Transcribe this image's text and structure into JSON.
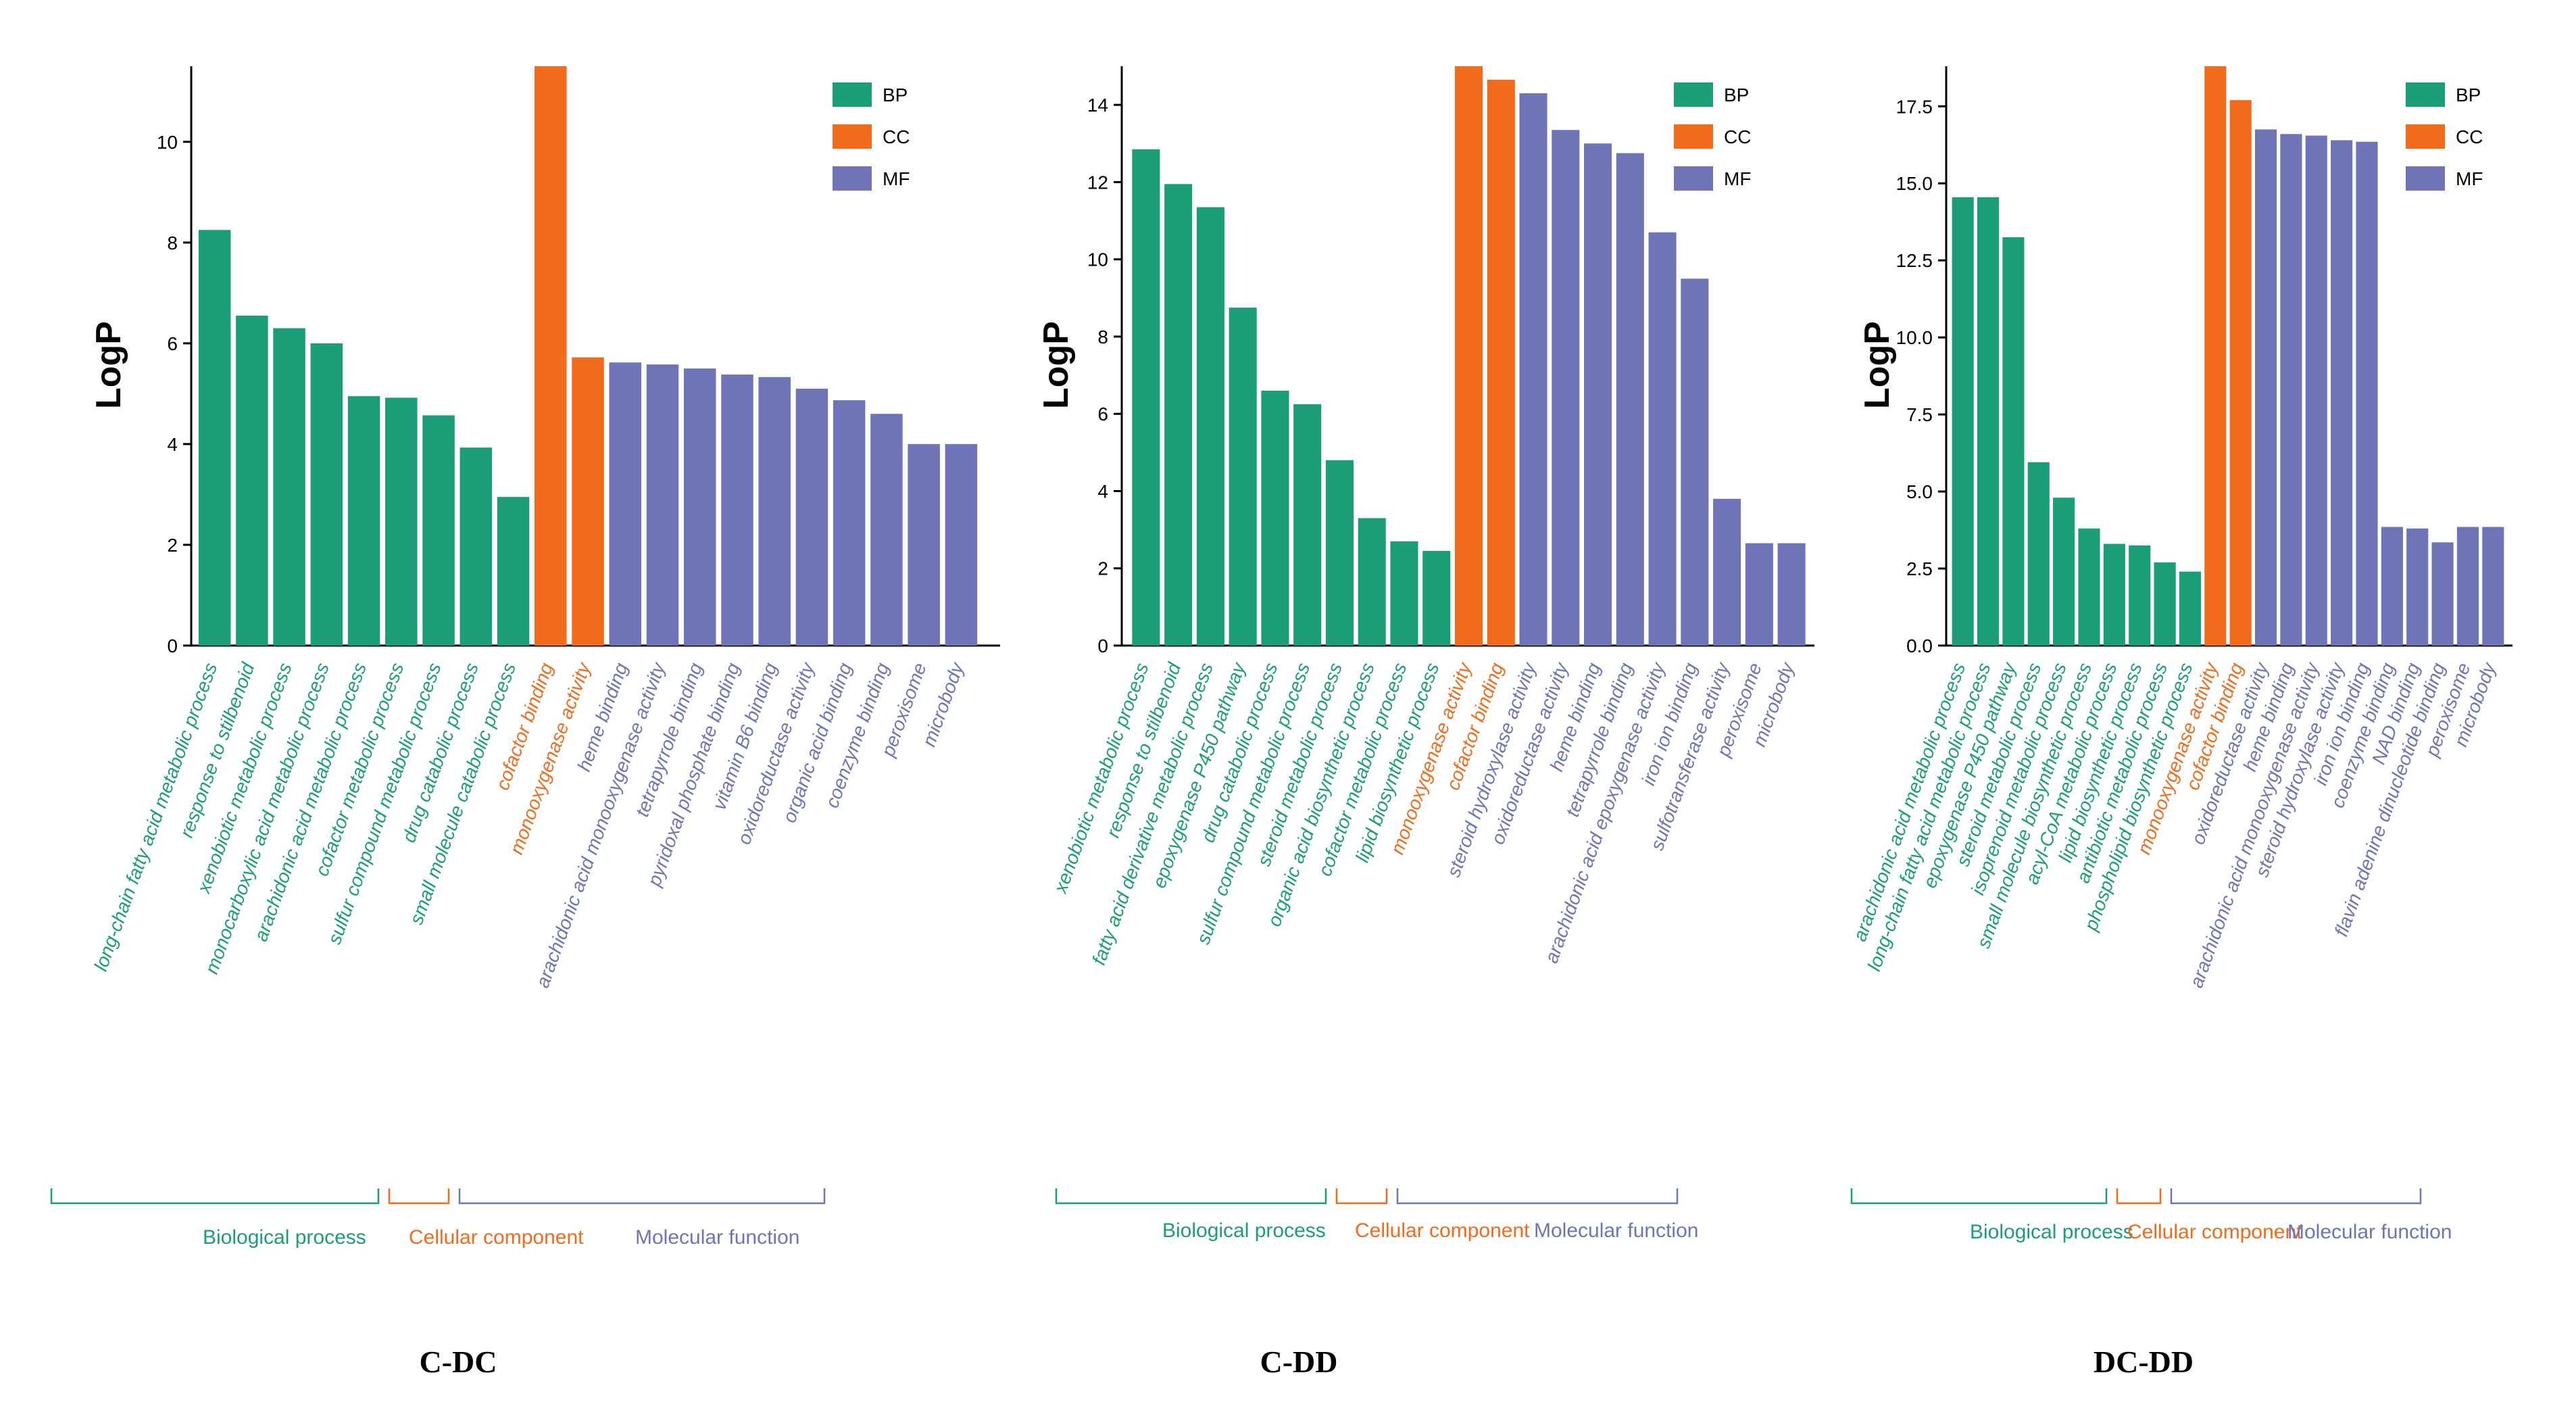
{
  "colors": {
    "BP": "#1b9e77",
    "CC": "#f26b1d",
    "MF": "#6f74b8"
  },
  "legend": [
    {
      "key": "BP",
      "label": "BP"
    },
    {
      "key": "CC",
      "label": "CC"
    },
    {
      "key": "MF",
      "label": "MF"
    }
  ],
  "ylabel": "LogP",
  "group_labels": {
    "BP": "Biological process",
    "CC": "Cellular component",
    "MF": "Molecular function"
  },
  "chart_data": [
    {
      "type": "bar",
      "title": "C-DC",
      "ylabel": "LogP",
      "ylim": [
        0,
        11.5
      ],
      "yticks": [
        0,
        2,
        4,
        6,
        8,
        10
      ],
      "tick_labels": [
        "0",
        "2",
        "4",
        "6",
        "8",
        "10"
      ],
      "categories": [
        "long-chain fatty acid metabolic process",
        "response to stilbenoid",
        "xenobiotic metabolic process",
        "monocarboxylic acid metabolic process",
        "arachidonic acid metabolic process",
        "cofactor metabolic process",
        "sulfur compound metabolic process",
        "drug catabolic process",
        "small molecule catabolic process",
        "cofactor binding",
        "monooxygenase activity",
        "heme binding",
        "arachidonic acid monooxygenase activity",
        "tetrapyrrole binding",
        "pyridoxal phosphate binding",
        "vitamin B6 binding",
        "oxidoreductase activity",
        "organic acid binding",
        "coenzyme binding",
        "peroxisome",
        "microbody"
      ],
      "groups": [
        "BP",
        "BP",
        "BP",
        "BP",
        "BP",
        "BP",
        "BP",
        "BP",
        "BP",
        "CC",
        "CC",
        "MF",
        "MF",
        "MF",
        "MF",
        "MF",
        "MF",
        "MF",
        "MF",
        "MF",
        "MF"
      ],
      "values": [
        8.25,
        6.55,
        6.3,
        6.0,
        4.95,
        4.92,
        4.57,
        3.93,
        2.95,
        11.5,
        5.72,
        5.62,
        5.58,
        5.5,
        5.38,
        5.33,
        5.1,
        4.87,
        4.6,
        4.0,
        4.0
      ]
    },
    {
      "type": "bar",
      "title": "C-DD",
      "ylabel": "LogP",
      "ylim": [
        0,
        15.0
      ],
      "yticks": [
        0,
        2,
        4,
        6,
        8,
        10,
        12,
        14
      ],
      "tick_labels": [
        "0",
        "2",
        "4",
        "6",
        "8",
        "10",
        "12",
        "14"
      ],
      "categories": [
        "xenobiotic metabolic process",
        "response to stilbenoid",
        "fatty acid derivative metabolic process",
        "epoxygenase P450 pathway",
        "drug catabolic process",
        "sulfur compound metabolic process",
        "steroid metabolic process",
        "organic acid biosynthetic process",
        "cofactor metabolic process",
        "lipid biosynthetic process",
        "monooxygenase activity",
        "cofactor binding",
        "steroid hydroxylase activity",
        "oxidoreductase activity",
        "heme binding",
        "tetrapyrrole binding",
        "arachidonic acid epoxygenase activity",
        "iron ion binding",
        "sulfotransferase activity",
        "peroxisome",
        "microbody"
      ],
      "groups": [
        "BP",
        "BP",
        "BP",
        "BP",
        "BP",
        "BP",
        "BP",
        "BP",
        "BP",
        "BP",
        "CC",
        "CC",
        "MF",
        "MF",
        "MF",
        "MF",
        "MF",
        "MF",
        "MF",
        "MF",
        "MF"
      ],
      "values": [
        12.85,
        11.95,
        11.35,
        8.75,
        6.6,
        6.25,
        4.8,
        3.3,
        2.7,
        2.45,
        15.0,
        14.65,
        14.3,
        13.35,
        13.0,
        12.75,
        10.7,
        9.5,
        3.8,
        2.65,
        2.65
      ]
    },
    {
      "type": "bar",
      "title": "DC-DD",
      "ylabel": "LogP",
      "ylim": [
        0,
        18.8
      ],
      "yticks": [
        0,
        2.5,
        5,
        7.5,
        10,
        12.5,
        15,
        17.5
      ],
      "tick_labels": [
        "0.0",
        "2.5",
        "5.0",
        "7.5",
        "10.0",
        "12.5",
        "15.0",
        "17.5"
      ],
      "categories": [
        "arachidonic acid metabolic process",
        "long-chain fatty acid metabolic process",
        "epoxygenase P450 pathway",
        "steroid metabolic process",
        "isoprenoid metabolic process",
        "small molecule biosynthetic process",
        "acyl-CoA metabolic process",
        "lipid biosynthetic process",
        "antibiotic metabolic process",
        "phospholipid biosynthetic process",
        "monooxygenase activity",
        "cofactor binding",
        "oxidoreductase activity",
        "heme binding",
        "arachidonic acid monooxygenase activity",
        "steroid hydroxylase activity",
        "iron ion binding",
        "coenzyme binding",
        "NAD binding",
        "flavin adenine dinucleotide binding",
        "peroxisome",
        "microbody"
      ],
      "groups": [
        "BP",
        "BP",
        "BP",
        "BP",
        "BP",
        "BP",
        "BP",
        "BP",
        "BP",
        "BP",
        "CC",
        "CC",
        "MF",
        "MF",
        "MF",
        "MF",
        "MF",
        "MF",
        "MF",
        "MF",
        "MF",
        "MF"
      ],
      "values": [
        14.55,
        14.55,
        13.25,
        5.95,
        4.8,
        3.8,
        3.3,
        3.25,
        2.7,
        2.4,
        18.8,
        17.7,
        16.75,
        16.6,
        16.55,
        16.4,
        16.35,
        3.85,
        3.8,
        3.35,
        3.85,
        3.85
      ]
    }
  ]
}
